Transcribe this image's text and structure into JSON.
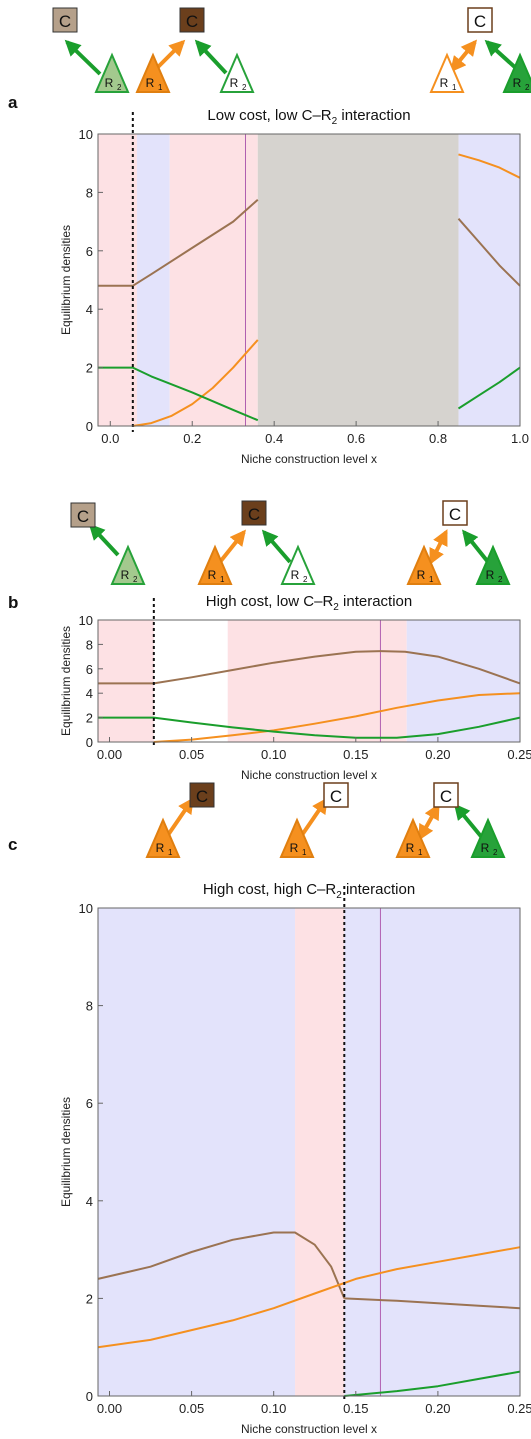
{
  "colors": {
    "pink_region": "#fde1e4",
    "blue_region": "#e3e3fb",
    "gray_region": "#d6d3cf",
    "consumer": "#9b7352",
    "r1": "#f5901f",
    "r2": "#1a9e2c",
    "vline": "#b05fb0",
    "node_light": "#b5a08a",
    "node_dark": "#6b3f1c",
    "tri_r1": "#f5901f",
    "tri_r2_light": "#a3c98e",
    "tri_r2_dark": "#27a23a"
  },
  "chart_data": [
    {
      "panel": "a",
      "type": "line",
      "title": "Low cost, low C–R",
      "title_sub": "2",
      "title_tail": " interaction",
      "xlabel": "Niche construction level x",
      "ylabel": "Equilibrium densities",
      "xlim": [
        -0.03,
        1.0
      ],
      "ylim": [
        0,
        10
      ],
      "xticks": [
        0.0,
        0.2,
        0.4,
        0.6,
        0.8,
        1.0
      ],
      "xtick_labels": [
        "0.0",
        "0.2",
        "0.4",
        "0.6",
        "0.8",
        "1.0"
      ],
      "yticks": [
        0,
        2,
        4,
        6,
        8,
        10
      ],
      "ytick_labels": [
        "0",
        "2",
        "4",
        "6",
        "8",
        "10"
      ],
      "regions": [
        {
          "from": -0.03,
          "to": 0.065,
          "kind": "pink"
        },
        {
          "from": 0.065,
          "to": 0.145,
          "kind": "blue"
        },
        {
          "from": 0.145,
          "to": 0.36,
          "kind": "pink"
        },
        {
          "from": 0.36,
          "to": 0.85,
          "kind": "gray"
        },
        {
          "from": 0.85,
          "to": 1.0,
          "kind": "blue"
        }
      ],
      "dashed_x": 0.055,
      "solid_vline_x": 0.33,
      "series": [
        {
          "key": "consumer",
          "x": [
            -0.03,
            0.055,
            0.1,
            0.2,
            0.3,
            0.36
          ],
          "y": [
            4.8,
            4.8,
            5.2,
            6.1,
            7.0,
            7.75
          ]
        },
        {
          "key": "consumer",
          "x": [
            0.85,
            0.9,
            0.95,
            1.0
          ],
          "y": [
            7.1,
            6.3,
            5.5,
            4.8
          ]
        },
        {
          "key": "r1",
          "x": [
            0.055,
            0.1,
            0.15,
            0.2,
            0.25,
            0.3,
            0.36
          ],
          "y": [
            0.0,
            0.1,
            0.35,
            0.75,
            1.3,
            2.0,
            2.95
          ]
        },
        {
          "key": "r1",
          "x": [
            0.85,
            0.9,
            0.95,
            1.0
          ],
          "y": [
            9.3,
            9.1,
            8.85,
            8.5
          ]
        },
        {
          "key": "r2",
          "x": [
            -0.03,
            0.055,
            0.1,
            0.2,
            0.3,
            0.36
          ],
          "y": [
            2.0,
            2.0,
            1.7,
            1.15,
            0.55,
            0.2
          ]
        },
        {
          "key": "r2",
          "x": [
            0.85,
            0.9,
            0.95,
            1.0
          ],
          "y": [
            0.6,
            1.05,
            1.5,
            2.0
          ]
        }
      ]
    },
    {
      "panel": "b",
      "type": "line",
      "title": "High cost, low C–R",
      "title_sub": "2",
      "title_tail": " interaction",
      "xlabel": "Niche construction level x",
      "ylabel": "Equilibrium densities",
      "xlim": [
        -0.007,
        0.25
      ],
      "ylim": [
        0,
        10
      ],
      "xticks": [
        0.0,
        0.05,
        0.1,
        0.15,
        0.2,
        0.25
      ],
      "xtick_labels": [
        "0.00",
        "0.05",
        "0.10",
        "0.15",
        "0.20",
        "0.25"
      ],
      "yticks": [
        0,
        2,
        4,
        6,
        8,
        10
      ],
      "ytick_labels": [
        "0",
        "2",
        "4",
        "6",
        "8",
        "10"
      ],
      "regions": [
        {
          "from": -0.007,
          "to": 0.027,
          "kind": "pink"
        },
        {
          "from": 0.072,
          "to": 0.181,
          "kind": "pink"
        },
        {
          "from": 0.181,
          "to": 0.25,
          "kind": "blue"
        }
      ],
      "dashed_x": 0.027,
      "solid_vline_x": 0.165,
      "series": [
        {
          "key": "consumer",
          "x": [
            -0.007,
            0.027,
            0.05,
            0.075,
            0.1,
            0.125,
            0.15,
            0.165,
            0.18,
            0.2,
            0.225,
            0.25
          ],
          "y": [
            4.8,
            4.8,
            5.3,
            5.9,
            6.5,
            7.0,
            7.4,
            7.45,
            7.4,
            7.0,
            6.0,
            4.8
          ]
        },
        {
          "key": "r1",
          "x": [
            0.027,
            0.05,
            0.075,
            0.1,
            0.125,
            0.15,
            0.175,
            0.2,
            0.225,
            0.25
          ],
          "y": [
            0.0,
            0.2,
            0.55,
            0.95,
            1.5,
            2.1,
            2.8,
            3.4,
            3.85,
            4.0
          ]
        },
        {
          "key": "r2",
          "x": [
            -0.007,
            0.027,
            0.05,
            0.075,
            0.1,
            0.125,
            0.15,
            0.175,
            0.2,
            0.225,
            0.25
          ],
          "y": [
            2.0,
            2.0,
            1.6,
            1.2,
            0.85,
            0.55,
            0.35,
            0.35,
            0.65,
            1.25,
            2.0
          ]
        }
      ]
    },
    {
      "panel": "c",
      "type": "line",
      "title": "High cost, high C–R",
      "title_sub": "2",
      "title_tail": " interaction",
      "xlabel": "Niche construction level x",
      "ylabel": "Equilibrium densities",
      "xlim": [
        -0.007,
        0.25
      ],
      "ylim": [
        0,
        10
      ],
      "xticks": [
        0.0,
        0.05,
        0.1,
        0.15,
        0.2,
        0.25
      ],
      "xtick_labels": [
        "0.00",
        "0.05",
        "0.10",
        "0.15",
        "0.20",
        "0.25"
      ],
      "yticks": [
        0,
        2,
        4,
        6,
        8,
        10
      ],
      "ytick_labels": [
        "0",
        "2",
        "4",
        "6",
        "8",
        "10"
      ],
      "regions": [
        {
          "from": -0.007,
          "to": 0.113,
          "kind": "blue"
        },
        {
          "from": 0.113,
          "to": 0.143,
          "kind": "pink"
        },
        {
          "from": 0.143,
          "to": 0.25,
          "kind": "blue"
        }
      ],
      "dashed_x": 0.143,
      "solid_vline_x": 0.165,
      "series": [
        {
          "key": "consumer",
          "x": [
            -0.007,
            0.025,
            0.05,
            0.075,
            0.1,
            0.113,
            0.125,
            0.135,
            0.143
          ],
          "y": [
            2.4,
            2.65,
            2.95,
            3.2,
            3.35,
            3.35,
            3.1,
            2.65,
            2.0
          ]
        },
        {
          "key": "consumer",
          "x": [
            0.143,
            0.175,
            0.2,
            0.225,
            0.25
          ],
          "y": [
            2.0,
            1.95,
            1.9,
            1.85,
            1.8
          ]
        },
        {
          "key": "r1",
          "x": [
            -0.007,
            0.025,
            0.05,
            0.075,
            0.1,
            0.125,
            0.15,
            0.175,
            0.2,
            0.225,
            0.25
          ],
          "y": [
            1.0,
            1.15,
            1.35,
            1.55,
            1.8,
            2.1,
            2.4,
            2.6,
            2.75,
            2.9,
            3.05
          ]
        },
        {
          "key": "r2",
          "x": [
            0.143,
            0.175,
            0.2,
            0.225,
            0.25
          ],
          "y": [
            0.0,
            0.1,
            0.2,
            0.35,
            0.5
          ]
        }
      ]
    }
  ],
  "network_labels": {
    "consumer": "C",
    "r1": "R",
    "r1_sub": "1",
    "r2": "R",
    "r2_sub": "2"
  }
}
